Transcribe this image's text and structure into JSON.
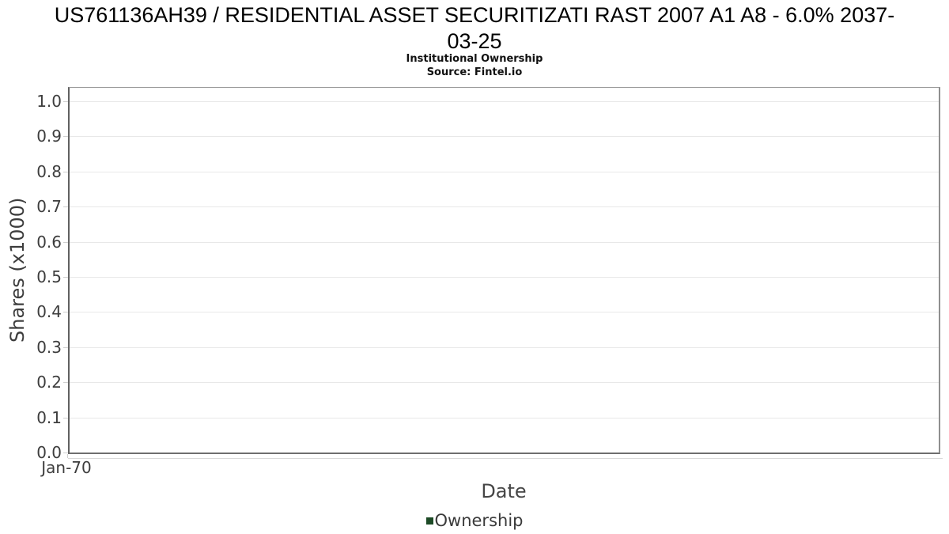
{
  "header": {
    "title_line1": "US761136AH39 / RESIDENTIAL ASSET SECURITIZATI RAST 2007 A1 A8 - 6.0% 2037-",
    "title_line2": "03-25",
    "subtitle": "Institutional Ownership",
    "source": "Source: Fintel.io"
  },
  "chart_data": {
    "type": "line",
    "title": "US761136AH39 / RESIDENTIAL ASSET SECURITIZATI RAST 2007 A1 A8 - 6.0% 2037-03-25",
    "subtitle": "Institutional Ownership",
    "source": "Source: Fintel.io",
    "xlabel": "Date",
    "ylabel": "Shares (x1000)",
    "ylim": [
      0.0,
      1.04
    ],
    "yticks": [
      0.0,
      0.1,
      0.2,
      0.3,
      0.4,
      0.5,
      0.6,
      0.7,
      0.8,
      0.9,
      1.0
    ],
    "ytick_labels": [
      "0.0",
      "0.1",
      "0.2",
      "0.3",
      "0.4",
      "0.5",
      "0.6",
      "0.7",
      "0.8",
      "0.9",
      "1.0"
    ],
    "xtick_labels": [
      "Jan-70"
    ],
    "grid": true,
    "legend_position": "bottom",
    "series": [
      {
        "name": "Ownership",
        "color": "#1d4a26",
        "x": [],
        "values": []
      }
    ],
    "colors": {
      "gridline": "#e8e8e8",
      "axis": "#6e6e6e",
      "tick_text": "#3d3d3d",
      "title_text": "#000000",
      "legend_marker": "#1d4a26"
    }
  }
}
